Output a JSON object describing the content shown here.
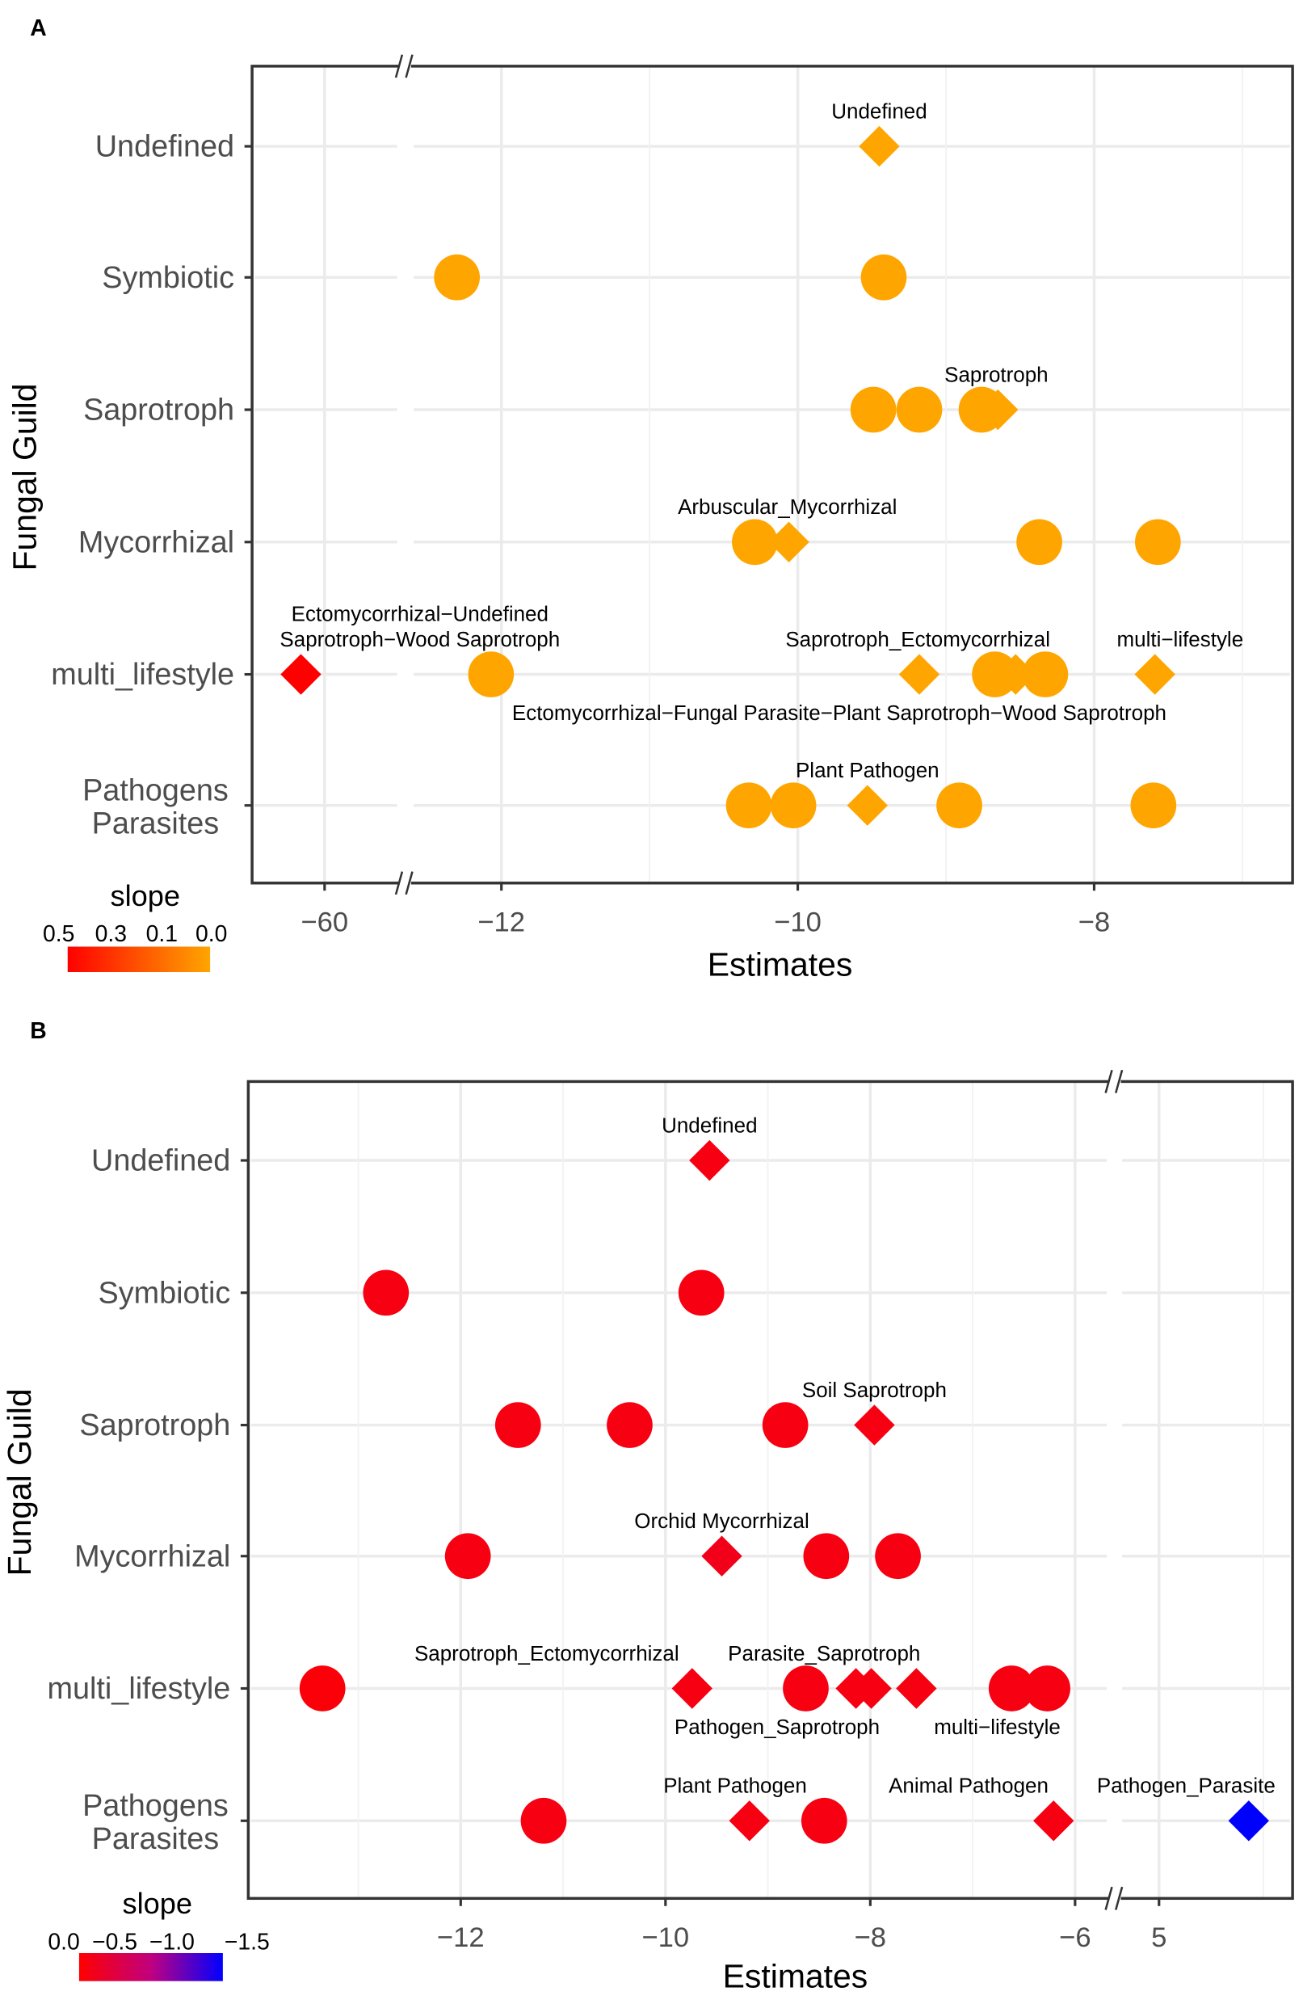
{
  "chart_data": [
    {
      "panel_label": "A",
      "type": "scatter",
      "xlabel": "Estimates",
      "ylabel": "Fungal Guild",
      "categories": [
        "Undefined",
        "Symbiotic",
        "Saprotroph",
        "Mycorrhizal",
        "multi_lifestyle",
        [
          "Pathogens",
          "Parasites"
        ]
      ],
      "x_ticks": [
        -60,
        -12,
        -10,
        -8
      ],
      "x_axis_break": "between -60 and -12",
      "grid": true,
      "legend": {
        "title": "slope",
        "labels": [
          "0.5",
          "0.3",
          "0.1",
          "0.0"
        ],
        "colors": [
          "#FF0000",
          "#FFA500"
        ],
        "range": [
          0.5,
          0.0
        ],
        "placement": "bottom-left"
      },
      "points": [
        {
          "row": 0,
          "x": -9.45,
          "shape": "diamond",
          "slope": 0.0
        },
        {
          "row": 1,
          "x": -12.3,
          "shape": "circle",
          "slope": 0.0
        },
        {
          "row": 1,
          "x": -9.42,
          "shape": "circle",
          "slope": 0.0
        },
        {
          "row": 2,
          "x": -9.49,
          "shape": "circle",
          "slope": 0.0
        },
        {
          "row": 2,
          "x": -9.18,
          "shape": "circle",
          "slope": 0.0
        },
        {
          "row": 2,
          "x": -8.76,
          "shape": "circle",
          "slope": 0.0
        },
        {
          "row": 2,
          "x": -8.65,
          "shape": "diamond",
          "slope": 0.0
        },
        {
          "row": 3,
          "x": -10.29,
          "shape": "circle",
          "slope": 0.0
        },
        {
          "row": 3,
          "x": -10.06,
          "shape": "diamond",
          "slope": 0.0
        },
        {
          "row": 3,
          "x": -8.37,
          "shape": "circle",
          "slope": 0.0
        },
        {
          "row": 3,
          "x": -7.57,
          "shape": "circle",
          "slope": 0.0
        },
        {
          "row": 4,
          "x": -60.16,
          "shape": "diamond",
          "slope": 0.5
        },
        {
          "row": 4,
          "x": -12.07,
          "shape": "circle",
          "slope": 0.0
        },
        {
          "row": 4,
          "x": -9.18,
          "shape": "diamond",
          "slope": 0.0
        },
        {
          "row": 4,
          "x": -8.67,
          "shape": "circle",
          "slope": 0.0
        },
        {
          "row": 4,
          "x": -8.53,
          "shape": "diamond",
          "slope": 0.0
        },
        {
          "row": 4,
          "x": -8.33,
          "shape": "circle",
          "slope": 0.0
        },
        {
          "row": 4,
          "x": -7.59,
          "shape": "diamond",
          "slope": 0.0
        },
        {
          "row": 5,
          "x": -10.33,
          "shape": "circle",
          "slope": 0.0
        },
        {
          "row": 5,
          "x": -10.03,
          "shape": "circle",
          "slope": 0.0
        },
        {
          "row": 5,
          "x": -9.53,
          "shape": "diamond",
          "slope": 0.0
        },
        {
          "row": 5,
          "x": -8.91,
          "shape": "circle",
          "slope": 0.0
        },
        {
          "row": 5,
          "x": -7.6,
          "shape": "circle",
          "slope": 0.0
        }
      ],
      "annotations": [
        {
          "lines": [
            "Undefined"
          ],
          "row": 0,
          "x": -9.45,
          "pos": "above"
        },
        {
          "lines": [
            "Saprotroph"
          ],
          "row": 2,
          "x": -8.66,
          "pos": "above"
        },
        {
          "lines": [
            "Arbuscular_Mycorrhizal"
          ],
          "row": 3,
          "x": -10.07,
          "pos": "above"
        },
        {
          "lines": [
            "Ectomycorrhizal−Undefined",
            "Saprotroph−Wood Saprotroph"
          ],
          "row": 4,
          "x": -12.55,
          "pos": "above"
        },
        {
          "lines": [
            "Saprotroph_Ectomycorrhizal"
          ],
          "row": 4,
          "x": -9.19,
          "pos": "above"
        },
        {
          "lines": [
            "multi−lifestyle"
          ],
          "row": 4,
          "x": -7.42,
          "pos": "above"
        },
        {
          "lines": [
            "Ectomycorrhizal−Fungal Parasite−Plant Saprotroph−Wood Saprotroph"
          ],
          "row": 4,
          "x": -9.72,
          "pos": "below"
        },
        {
          "lines": [
            "Plant Pathogen"
          ],
          "row": 5,
          "x": -9.53,
          "pos": "above"
        }
      ]
    },
    {
      "panel_label": "B",
      "type": "scatter",
      "xlabel": "Estimates",
      "ylabel": "Fungal Guild",
      "categories": [
        "Undefined",
        "Symbiotic",
        "Saprotroph",
        "Mycorrhizal",
        "multi_lifestyle",
        [
          "Pathogens",
          "Parasites"
        ]
      ],
      "x_ticks": [
        -12,
        -10,
        -8,
        -6,
        5
      ],
      "x_axis_break": "between -6 and 5",
      "grid": true,
      "legend": {
        "title": "slope",
        "labels": [
          "0.0",
          "−0.5",
          "−1.0",
          "−1.5"
        ],
        "colors": [
          "#FF0000",
          "#C0007F",
          "#0000FF"
        ],
        "range": [
          0.0,
          -1.5
        ],
        "placement": "bottom-left"
      },
      "points": [
        {
          "row": 0,
          "x": -9.57,
          "shape": "diamond",
          "slope": -0.1
        },
        {
          "row": 1,
          "x": -12.73,
          "shape": "circle",
          "slope": -0.1
        },
        {
          "row": 1,
          "x": -9.65,
          "shape": "circle",
          "slope": -0.1
        },
        {
          "row": 2,
          "x": -11.44,
          "shape": "circle",
          "slope": -0.1
        },
        {
          "row": 2,
          "x": -10.35,
          "shape": "circle",
          "slope": -0.1
        },
        {
          "row": 2,
          "x": -8.83,
          "shape": "circle",
          "slope": -0.1
        },
        {
          "row": 2,
          "x": -7.96,
          "shape": "diamond",
          "slope": -0.1
        },
        {
          "row": 3,
          "x": -11.93,
          "shape": "circle",
          "slope": -0.1
        },
        {
          "row": 3,
          "x": -9.45,
          "shape": "diamond",
          "slope": -0.15
        },
        {
          "row": 3,
          "x": -8.43,
          "shape": "circle",
          "slope": -0.1
        },
        {
          "row": 3,
          "x": -7.73,
          "shape": "circle",
          "slope": -0.1
        },
        {
          "row": 4,
          "x": -13.35,
          "shape": "circle",
          "slope": -0.05
        },
        {
          "row": 4,
          "x": -9.74,
          "shape": "diamond",
          "slope": -0.1
        },
        {
          "row": 4,
          "x": -8.63,
          "shape": "circle",
          "slope": -0.1
        },
        {
          "row": 4,
          "x": -8.14,
          "shape": "diamond",
          "slope": -0.1
        },
        {
          "row": 4,
          "x": -7.99,
          "shape": "diamond",
          "slope": -0.1
        },
        {
          "row": 4,
          "x": -7.55,
          "shape": "diamond",
          "slope": -0.1
        },
        {
          "row": 4,
          "x": -6.62,
          "shape": "circle",
          "slope": -0.1
        },
        {
          "row": 4,
          "x": -6.27,
          "shape": "circle",
          "slope": -0.1
        },
        {
          "row": 5,
          "x": -11.19,
          "shape": "circle",
          "slope": -0.1
        },
        {
          "row": 5,
          "x": -9.18,
          "shape": "diamond",
          "slope": -0.1
        },
        {
          "row": 5,
          "x": -8.45,
          "shape": "circle",
          "slope": -0.1
        },
        {
          "row": 5,
          "x": -6.21,
          "shape": "diamond",
          "slope": -0.1
        },
        {
          "row": 5,
          "x": 5.43,
          "shape": "diamond",
          "slope": -1.5
        }
      ],
      "annotations": [
        {
          "lines": [
            "Undefined"
          ],
          "row": 0,
          "x": -9.57,
          "pos": "above"
        },
        {
          "lines": [
            "Soil Saprotroph"
          ],
          "row": 2,
          "x": -7.96,
          "pos": "above"
        },
        {
          "lines": [
            "Orchid Mycorrhizal"
          ],
          "row": 3,
          "x": -9.45,
          "pos": "above"
        },
        {
          "lines": [
            "Saprotroph_Ectomycorrhizal"
          ],
          "row": 4,
          "x": -11.16,
          "pos": "above"
        },
        {
          "lines": [
            "Parasite_Saprotroph"
          ],
          "row": 4,
          "x": -8.45,
          "pos": "above"
        },
        {
          "lines": [
            "Pathogen_Saprotroph"
          ],
          "row": 4,
          "x": -8.91,
          "pos": "below"
        },
        {
          "lines": [
            "multi−lifestyle"
          ],
          "row": 4,
          "x": -6.76,
          "pos": "below"
        },
        {
          "lines": [
            "Plant Pathogen"
          ],
          "row": 5,
          "x": -9.32,
          "pos": "above"
        },
        {
          "lines": [
            "Animal Pathogen"
          ],
          "row": 5,
          "x": -7.04,
          "pos": "above"
        },
        {
          "lines": [
            "Pathogen_Parasite"
          ],
          "row": 5,
          "x": 5.13,
          "pos": "above"
        }
      ]
    }
  ]
}
